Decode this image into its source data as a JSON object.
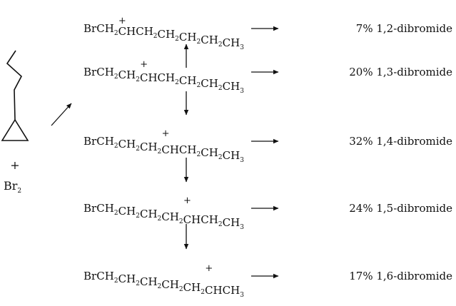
{
  "reagents": {
    "plus": "+",
    "bromine": {
      "text": "Br",
      "subscript": "2"
    }
  },
  "rows": [
    {
      "cation": {
        "segments": [
          [
            "Br",
            ""
          ],
          [
            "CH",
            "2"
          ],
          [
            "CHCH",
            "2"
          ],
          [
            "CH",
            "2"
          ],
          [
            "CH",
            "2"
          ],
          [
            "CH",
            "2"
          ],
          [
            "CH",
            "3"
          ]
        ],
        "charged_segment": 2
      },
      "product": "7% 1,2-dibromide"
    },
    {
      "cation": {
        "segments": [
          [
            "Br",
            ""
          ],
          [
            "CH",
            "2"
          ],
          [
            "CH",
            "2"
          ],
          [
            "CHCH",
            "2"
          ],
          [
            "CH",
            "2"
          ],
          [
            "CH",
            "2"
          ],
          [
            "CH",
            "3"
          ]
        ],
        "charged_segment": 3
      },
      "product": "20% 1,3-dibromide"
    },
    {
      "cation": {
        "segments": [
          [
            "Br",
            ""
          ],
          [
            "CH",
            "2"
          ],
          [
            "CH",
            "2"
          ],
          [
            "CH",
            "2"
          ],
          [
            "CHCH",
            "2"
          ],
          [
            "CH",
            "2"
          ],
          [
            "CH",
            "3"
          ]
        ],
        "charged_segment": 4
      },
      "product": "32% 1,4-dibromide"
    },
    {
      "cation": {
        "segments": [
          [
            "Br",
            ""
          ],
          [
            "CH",
            "2"
          ],
          [
            "CH",
            "2"
          ],
          [
            "CH",
            "2"
          ],
          [
            "CH",
            "2"
          ],
          [
            "CHCH",
            "2"
          ],
          [
            "CH",
            "3"
          ]
        ],
        "charged_segment": 5
      },
      "product": "24% 1,5-dibromide"
    },
    {
      "cation": {
        "segments": [
          [
            "Br",
            ""
          ],
          [
            "CH",
            "2"
          ],
          [
            "CH",
            "2"
          ],
          [
            "CH",
            "2"
          ],
          [
            "CH",
            "2"
          ],
          [
            "CH",
            "2"
          ],
          [
            "CHCH",
            "3"
          ]
        ],
        "charged_segment": 6
      },
      "product": "17% 1,6-dibromide"
    }
  ],
  "charge_symbol": "+"
}
